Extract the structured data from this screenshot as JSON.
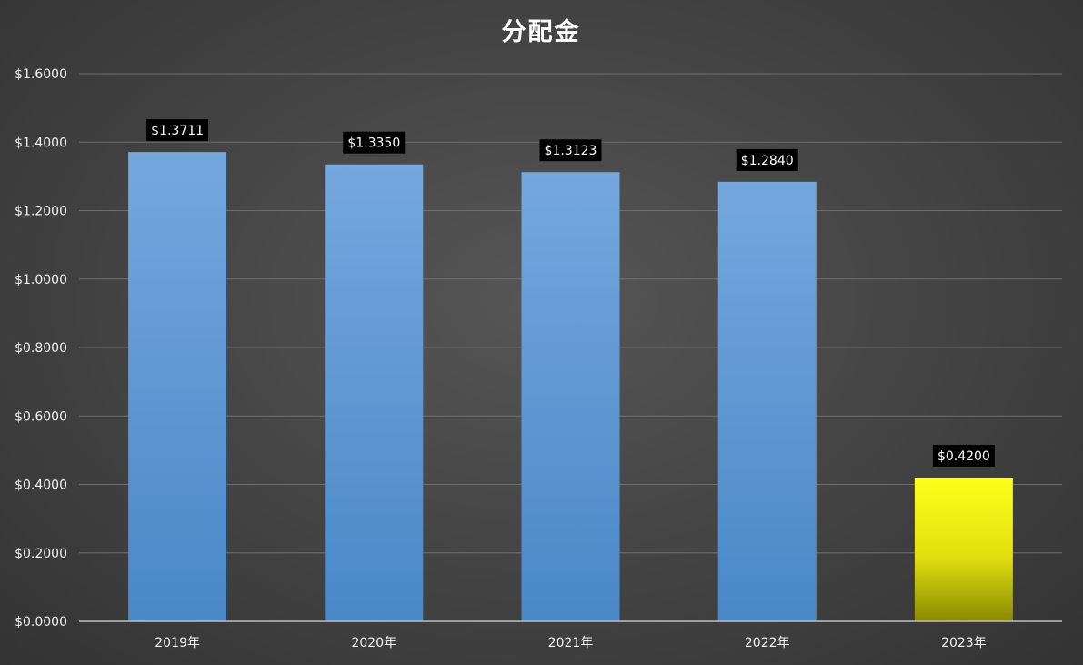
{
  "chart_data": {
    "type": "bar",
    "title": "分配金",
    "categories": [
      "2019年",
      "2020年",
      "2021年",
      "2022年",
      "2023年"
    ],
    "values": [
      1.3711,
      1.335,
      1.3123,
      1.284,
      0.42
    ],
    "data_labels": [
      "$1.3711",
      "$1.3350",
      "$1.3123",
      "$1.2840",
      "$0.4200"
    ],
    "y_ticks": [
      0,
      0.2,
      0.4,
      0.6,
      0.8,
      1.0,
      1.2,
      1.4,
      1.6
    ],
    "y_tick_labels": [
      "$0.0000",
      "$0.2000",
      "$0.4000",
      "$0.6000",
      "$0.8000",
      "$1.0000",
      "$1.2000",
      "$1.4000",
      "$1.6000"
    ],
    "ylim": [
      0,
      1.6
    ],
    "xlabel": "",
    "ylabel": "",
    "grid": true,
    "legend": "none",
    "colors": {
      "bar": "#5b9bd5",
      "bar_top": "#74a7de",
      "bar_bottom": "#4a88c8",
      "highlight_top": "#ffff1a",
      "highlight_bottom": "#8a8a00",
      "label_bg": "#000000",
      "text": "#ffffff",
      "grid": "#6e6e6e"
    },
    "highlight_index": 4
  }
}
